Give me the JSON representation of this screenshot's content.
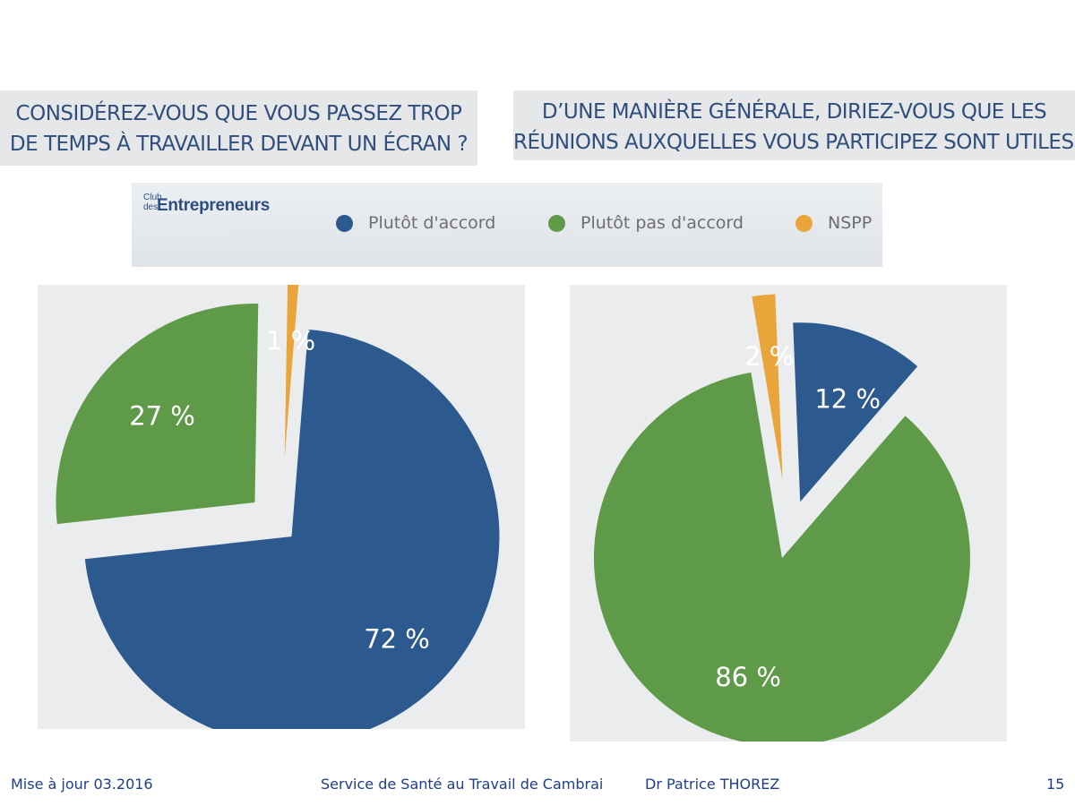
{
  "slide": {
    "question1": [
      "CONSIDÉREZ-VOUS QUE VOUS PASSEZ TROP",
      "DE TEMPS À TRAVAILLER DEVANT UN ÉCRAN ?"
    ],
    "question2": [
      "D’UNE MANIÈRE GÉNÉRALE, DIRIEZ-VOUS QUE LES",
      "RÉUNIONS AUXQUELLES VOUS PARTICIPEZ SONT UTILES ?"
    ]
  },
  "logo": {
    "club": "Club",
    "des": "des",
    "brand": "Entrepreneurs"
  },
  "legend": [
    {
      "label": "Plutôt d'accord",
      "color": "#2d5a8e"
    },
    {
      "label": "Plutôt pas d'accord",
      "color": "#5f9a48"
    },
    {
      "label": "NSPP",
      "color": "#e9a43a"
    }
  ],
  "chart_data": [
    {
      "type": "pie",
      "title": "CONSIDÉREZ-VOUS QUE VOUS PASSEZ TROP DE TEMPS À TRAVAILLER DEVANT UN ÉCRAN ?",
      "categories": [
        "Plutôt d'accord",
        "Plutôt pas d'accord",
        "NSPP"
      ],
      "values": [
        72,
        27,
        1
      ],
      "labels": [
        "72 %",
        "27 %",
        "1 %"
      ],
      "colors": [
        "#2d5a8e",
        "#5f9a48",
        "#e9a43a"
      ],
      "exploded": true
    },
    {
      "type": "pie",
      "title": "D’UNE MANIÈRE GÉNÉRALE, DIRIEZ-VOUS QUE LES RÉUNIONS AUXQUELLES VOUS PARTICIPEZ SONT UTILES ?",
      "categories": [
        "Plutôt d'accord",
        "Plutôt pas d'accord",
        "NSPP"
      ],
      "values": [
        12,
        86,
        2
      ],
      "labels": [
        "12 %",
        "86 %",
        "2 %"
      ],
      "colors": [
        "#2d5a8e",
        "#5f9a48",
        "#e9a43a"
      ],
      "exploded": true
    }
  ],
  "footer": {
    "updated": "Mise à jour 03.2016",
    "service": "Service de Santé au Travail de Cambrai",
    "author": "Dr Patrice THOREZ",
    "page": "15"
  }
}
